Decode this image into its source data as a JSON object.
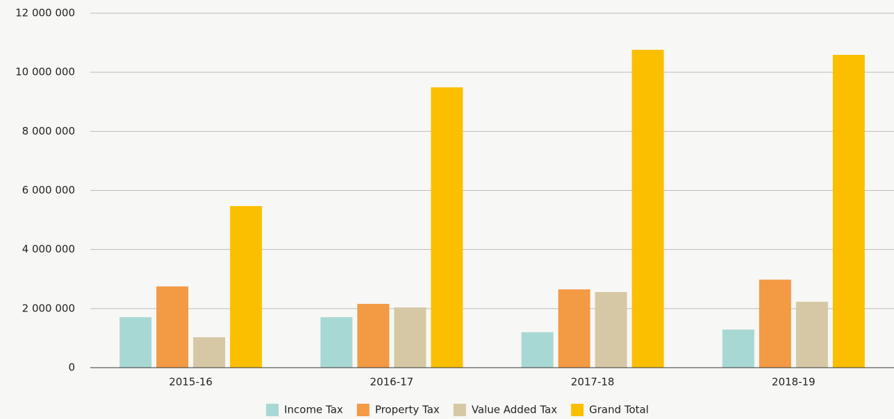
{
  "chart_data": {
    "type": "bar",
    "categories": [
      "2015-16",
      "2016-17",
      "2017-18",
      "2018-19"
    ],
    "series": [
      {
        "name": "Income Tax",
        "color": "#a8d8d4",
        "values": [
          1710000,
          1710000,
          1200000,
          1290000
        ]
      },
      {
        "name": "Property Tax",
        "color": "#f39a45",
        "values": [
          2750000,
          2160000,
          2650000,
          2980000
        ]
      },
      {
        "name": "Value Added Tax",
        "color": "#d6c8a5",
        "values": [
          1030000,
          2040000,
          2560000,
          2230000
        ]
      },
      {
        "name": "Grand Total",
        "color": "#fbbf00",
        "values": [
          5470000,
          9490000,
          10760000,
          10590000
        ]
      }
    ],
    "ylim": [
      0,
      12000000
    ],
    "yticks": [
      0,
      {
        "value": 2000000,
        "label": "2 000 000"
      },
      {
        "value": 4000000,
        "label": "4 000 000"
      },
      {
        "value": 6000000,
        "label": "6 000 000"
      },
      {
        "value": 8000000,
        "label": "8 000 000"
      },
      {
        "value": 10000000,
        "label": "10 000 000"
      },
      {
        "value": 12000000,
        "label": "12 000 000"
      }
    ],
    "grid": true,
    "legend": "bottom"
  }
}
